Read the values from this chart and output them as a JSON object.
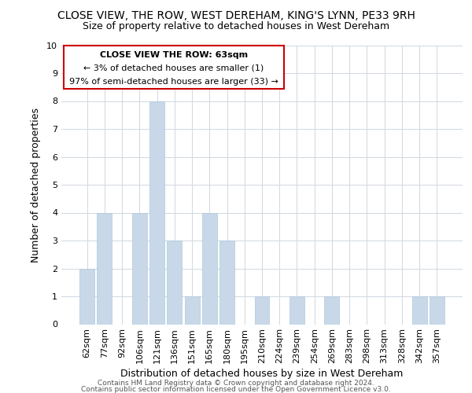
{
  "title": "CLOSE VIEW, THE ROW, WEST DEREHAM, KING'S LYNN, PE33 9RH",
  "subtitle": "Size of property relative to detached houses in West Dereham",
  "xlabel": "Distribution of detached houses by size in West Dereham",
  "ylabel": "Number of detached properties",
  "categories": [
    "62sqm",
    "77sqm",
    "92sqm",
    "106sqm",
    "121sqm",
    "136sqm",
    "151sqm",
    "165sqm",
    "180sqm",
    "195sqm",
    "210sqm",
    "224sqm",
    "239sqm",
    "254sqm",
    "269sqm",
    "283sqm",
    "298sqm",
    "313sqm",
    "328sqm",
    "342sqm",
    "357sqm"
  ],
  "values": [
    2,
    4,
    0,
    4,
    8,
    3,
    1,
    4,
    3,
    0,
    1,
    0,
    1,
    0,
    1,
    0,
    0,
    0,
    0,
    1,
    1
  ],
  "bar_color": "#c8d8e8",
  "bar_edge_color": "#aec8dc",
  "ylim": [
    0,
    10
  ],
  "yticks": [
    0,
    1,
    2,
    3,
    4,
    5,
    6,
    7,
    8,
    9,
    10
  ],
  "annotation_title": "CLOSE VIEW THE ROW: 63sqm",
  "annotation_line1": "← 3% of detached houses are smaller (1)",
  "annotation_line2": "97% of semi-detached houses are larger (33) →",
  "annotation_box_color": "#ffffff",
  "annotation_box_edge": "#cc0000",
  "footer1": "Contains HM Land Registry data © Crown copyright and database right 2024.",
  "footer2": "Contains public sector information licensed under the Open Government Licence v3.0.",
  "bg_color": "#ffffff",
  "grid_color": "#d0d8e0",
  "title_fontsize": 10,
  "subtitle_fontsize": 9,
  "axis_label_fontsize": 9,
  "tick_fontsize": 8,
  "ann_fontsize": 8,
  "footer_fontsize": 6.5
}
